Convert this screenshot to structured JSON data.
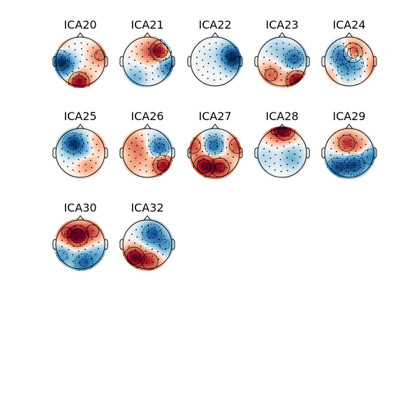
{
  "chart_data": {
    "type": "heatmap",
    "title": "",
    "colormap": "RdBu_r",
    "colors": {
      "red": "#b2182b",
      "blue": "#2166ac",
      "neutral": "#f7f7f7"
    },
    "grid": false,
    "legend": "none",
    "components": [
      {
        "name": "ICA20",
        "blobs": [
          {
            "x": -0.85,
            "y": 0.05,
            "v": -0.9
          },
          {
            "x": -0.55,
            "y": -0.25,
            "v": -0.5
          },
          {
            "x": -0.05,
            "y": -0.85,
            "v": 0.95
          },
          {
            "x": 0.8,
            "y": 0.25,
            "v": 0.45
          },
          {
            "x": -0.9,
            "y": 0.5,
            "v": 0.3
          }
        ]
      },
      {
        "name": "ICA21",
        "blobs": [
          {
            "x": 0.55,
            "y": 0.45,
            "v": 1.0
          },
          {
            "x": 0.0,
            "y": 0.4,
            "v": 0.35
          },
          {
            "x": 0.95,
            "y": 0.8,
            "v": -0.9
          },
          {
            "x": 0.9,
            "y": -0.2,
            "v": -0.7
          },
          {
            "x": -0.5,
            "y": -0.7,
            "v": -0.35
          }
        ]
      },
      {
        "name": "ICA22",
        "blobs": [
          {
            "x": 0.65,
            "y": 0.25,
            "v": -0.85
          },
          {
            "x": 0.85,
            "y": -0.05,
            "v": -0.5
          },
          {
            "x": -0.2,
            "y": 0.2,
            "v": -0.08
          }
        ]
      },
      {
        "name": "ICA23",
        "blobs": [
          {
            "x": 0.6,
            "y": -0.8,
            "v": 1.0
          },
          {
            "x": -0.45,
            "y": -0.55,
            "v": 0.5
          },
          {
            "x": 0.5,
            "y": 0.1,
            "v": -0.75
          },
          {
            "x": -0.2,
            "y": 0.5,
            "v": -0.2
          }
        ]
      },
      {
        "name": "ICA24",
        "blobs": [
          {
            "x": 0.15,
            "y": 0.35,
            "v": 0.85
          },
          {
            "x": -0.3,
            "y": 0.25,
            "v": -0.8
          },
          {
            "x": 0.3,
            "y": -0.05,
            "v": -0.55
          },
          {
            "x": -0.25,
            "y": -0.35,
            "v": -0.45
          },
          {
            "x": -0.6,
            "y": -0.5,
            "v": 0.3
          },
          {
            "x": 0.95,
            "y": -0.2,
            "v": 0.35
          }
        ]
      },
      {
        "name": "ICA25",
        "blobs": [
          {
            "x": -0.3,
            "y": 0.4,
            "v": -0.95
          },
          {
            "x": 0.1,
            "y": 0.15,
            "v": -0.3
          },
          {
            "x": 0.3,
            "y": -0.5,
            "v": 0.3
          },
          {
            "x": 0.75,
            "y": 0.4,
            "v": 0.25
          }
        ]
      },
      {
        "name": "ICA26",
        "blobs": [
          {
            "x": 0.5,
            "y": 0.2,
            "v": -0.8
          },
          {
            "x": 0.65,
            "y": -0.5,
            "v": 0.9
          },
          {
            "x": -0.6,
            "y": 0.4,
            "v": 0.35
          },
          {
            "x": -0.2,
            "y": 0.0,
            "v": 0.3
          },
          {
            "x": -0.6,
            "y": -0.5,
            "v": 0.2
          }
        ]
      },
      {
        "name": "ICA27",
        "blobs": [
          {
            "x": -0.45,
            "y": -0.55,
            "v": 1.0
          },
          {
            "x": 0.2,
            "y": -0.6,
            "v": 0.8
          },
          {
            "x": -0.05,
            "y": 0.3,
            "v": -0.75
          },
          {
            "x": -0.9,
            "y": 0.3,
            "v": 0.6
          },
          {
            "x": 0.9,
            "y": 0.3,
            "v": 0.6
          }
        ]
      },
      {
        "name": "ICA28",
        "blobs": [
          {
            "x": 0.1,
            "y": 0.95,
            "v": 0.95
          },
          {
            "x": -0.3,
            "y": 0.9,
            "v": 0.4
          },
          {
            "x": 0.4,
            "y": -0.2,
            "v": -0.35
          },
          {
            "x": -0.7,
            "y": -0.2,
            "v": -0.15
          }
        ]
      },
      {
        "name": "ICA29",
        "blobs": [
          {
            "x": -0.5,
            "y": -0.6,
            "v": -0.85
          },
          {
            "x": 0.2,
            "y": -0.5,
            "v": -0.9
          },
          {
            "x": 0.85,
            "y": -0.15,
            "v": -0.6
          },
          {
            "x": -0.1,
            "y": 0.4,
            "v": 0.65
          },
          {
            "x": 0.45,
            "y": 0.2,
            "v": 0.35
          }
        ]
      },
      {
        "name": "ICA30",
        "blobs": [
          {
            "x": -0.1,
            "y": 0.35,
            "v": 1.0
          },
          {
            "x": 0.5,
            "y": 0.55,
            "v": 0.5
          },
          {
            "x": -0.55,
            "y": 0.5,
            "v": 0.45
          },
          {
            "x": 0.15,
            "y": -0.75,
            "v": -0.75
          },
          {
            "x": -0.75,
            "y": -0.45,
            "v": -0.45
          },
          {
            "x": 0.75,
            "y": -0.45,
            "v": -0.35
          }
        ]
      },
      {
        "name": "ICA32",
        "blobs": [
          {
            "x": -0.55,
            "y": -0.55,
            "v": 1.0
          },
          {
            "x": 0.1,
            "y": -0.7,
            "v": 0.65
          },
          {
            "x": 0.2,
            "y": 0.45,
            "v": -0.8
          },
          {
            "x": 0.7,
            "y": 0.0,
            "v": -0.45
          }
        ]
      }
    ]
  }
}
